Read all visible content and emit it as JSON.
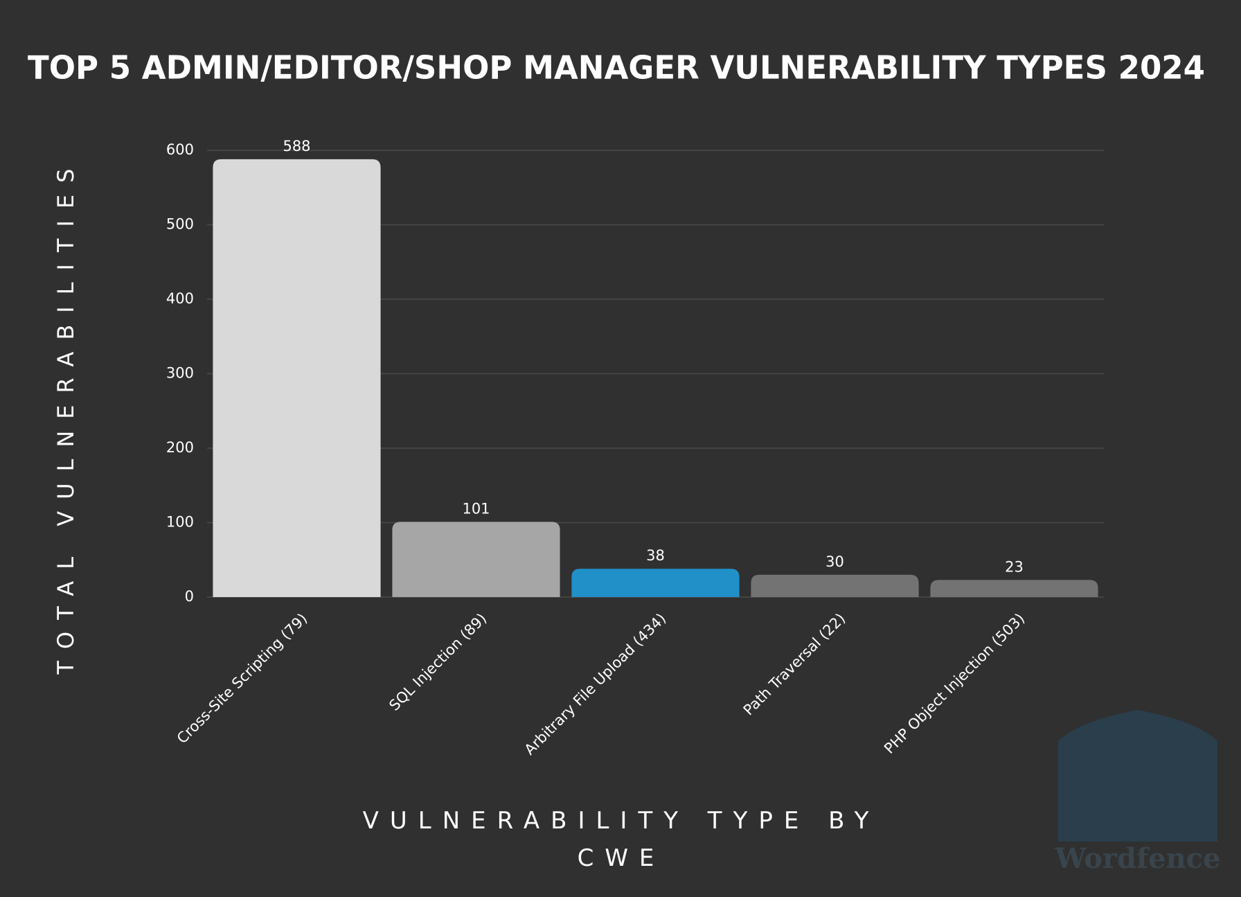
{
  "chart_data": {
    "type": "bar",
    "title": "TOP 5 ADMIN/EDITOR/SHOP MANAGER VULNERABILITY TYPES 2024",
    "x_label": "VULNERABILITY TYPE BY CWE",
    "y_label": "TOTAL VULNERABILITIES",
    "categories": [
      "Cross-Site Scripting (79)",
      "SQL Injection (89)",
      "Arbitrary File Upload (434)",
      "Path Traversal (22)",
      "PHP Object Injection (503)"
    ],
    "values": [
      588,
      101,
      38,
      30,
      23
    ],
    "colors": [
      "#d9d9d9",
      "#a6a6a6",
      "#2190c8",
      "#737373",
      "#737373"
    ],
    "ylim": [
      0,
      600
    ],
    "yticks": [
      0,
      100,
      200,
      300,
      400,
      500,
      600
    ],
    "grid": true
  },
  "watermark": "Wordfence"
}
